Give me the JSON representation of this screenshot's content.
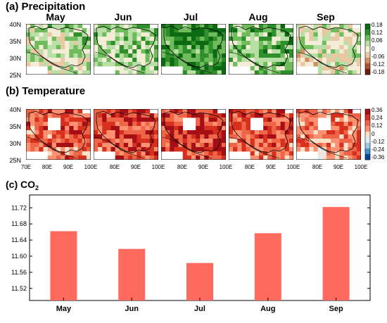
{
  "panels": {
    "precip": {
      "title": "(a) Precipitation",
      "months": [
        "May",
        "Jun",
        "Jul",
        "Aug",
        "Sep"
      ],
      "lat_ticks": [
        "40N",
        "35N",
        "30N",
        "25N"
      ],
      "colorbar": {
        "ticks": [
          "0.18",
          "0.12",
          "0.06",
          "0",
          "-0.06",
          "-0.12",
          "-0.18"
        ],
        "colors": [
          "#0b6a12",
          "#2f8f2a",
          "#6fbc5c",
          "#b8dfa6",
          "#f3ecd6",
          "#e9c9a4",
          "#d58d62",
          "#b1502d",
          "#6e1d08"
        ]
      }
    },
    "temp": {
      "title": "(b) Temperature",
      "lat_ticks": [
        "40N",
        "35N",
        "30N",
        "25N"
      ],
      "lon_ticks": [
        "70E",
        "80E",
        "90E",
        "100E"
      ],
      "colorbar": {
        "ticks": [
          "0.36",
          "0.24",
          "0.12",
          "0",
          "-0.12",
          "-0.24",
          "-0.36"
        ],
        "colors": [
          "#a50f15",
          "#d7301f",
          "#ef6548",
          "#fc9272",
          "#fde0c8",
          "#dbeef7",
          "#9ecae1",
          "#4292c6",
          "#084594"
        ]
      }
    }
  },
  "chart_data": {
    "type": "bar",
    "title": "(c) CO",
    "title_subscript": "2",
    "categories": [
      "May",
      "Jun",
      "Jul",
      "Aug",
      "Sep"
    ],
    "values": [
      11.662,
      11.618,
      11.583,
      11.657,
      11.722
    ],
    "ylim": [
      11.49,
      11.752
    ],
    "yticks": [
      "11.52",
      "11.56",
      "11.60",
      "11.64",
      "11.68",
      "11.72"
    ],
    "bar_color": "#ff6a5f"
  }
}
